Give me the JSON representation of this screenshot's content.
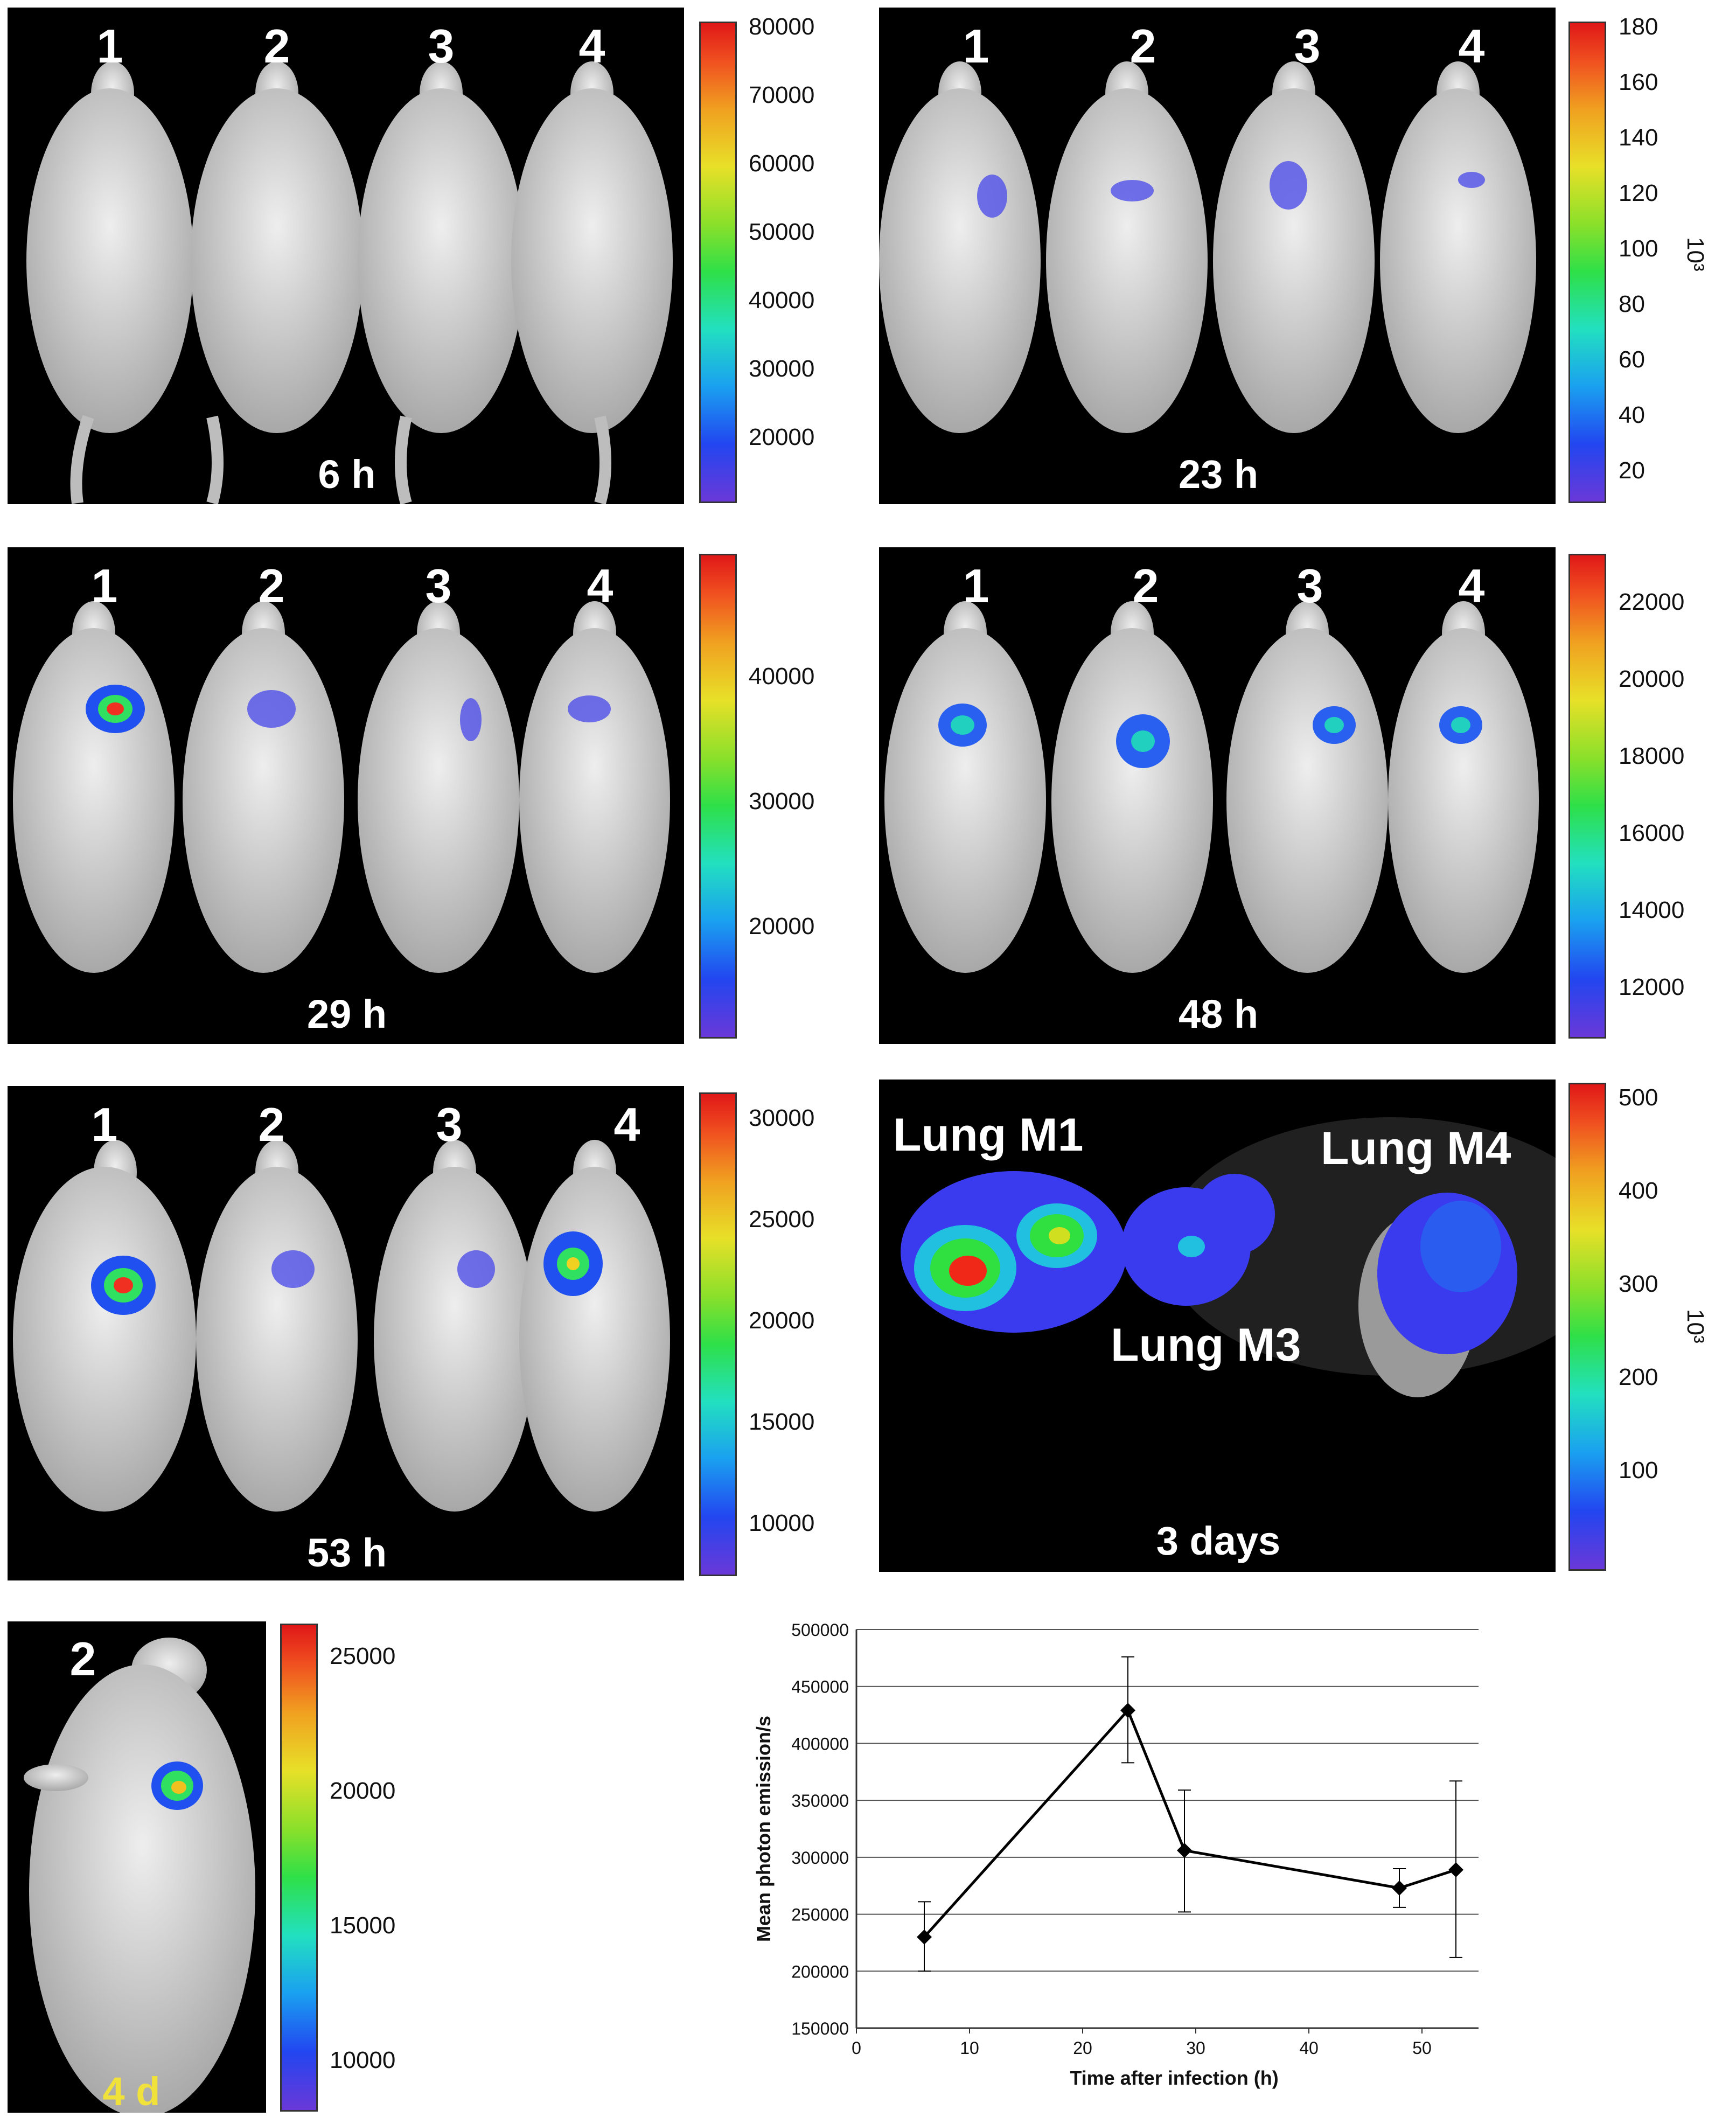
{
  "panels": [
    {
      "id": "p6h",
      "time": "6 h",
      "mice": [
        "1",
        "2",
        "3",
        "4"
      ],
      "scale": {
        "ticks": [
          "80000",
          "70000",
          "60000",
          "50000",
          "40000",
          "30000",
          "20000"
        ],
        "unit": ""
      }
    },
    {
      "id": "p23h",
      "time": "23 h",
      "mice": [
        "1",
        "2",
        "3",
        "4"
      ],
      "scale": {
        "ticks": [
          "180",
          "160",
          "140",
          "120",
          "100",
          "80",
          "60",
          "40",
          "20"
        ],
        "unit": "10³"
      }
    },
    {
      "id": "p29h",
      "time": "29 h",
      "mice": [
        "1",
        "2",
        "3",
        "4"
      ],
      "scale": {
        "ticks": [
          "40000",
          "30000",
          "20000"
        ],
        "unit": ""
      }
    },
    {
      "id": "p48h",
      "time": "48 h",
      "mice": [
        "1",
        "2",
        "3",
        "4"
      ],
      "scale": {
        "ticks": [
          "22000",
          "20000",
          "18000",
          "16000",
          "14000",
          "12000"
        ],
        "unit": ""
      }
    },
    {
      "id": "p53h",
      "time": "53 h",
      "mice": [
        "1",
        "2",
        "3",
        "4"
      ],
      "scale": {
        "ticks": [
          "30000",
          "25000",
          "20000",
          "15000",
          "10000"
        ],
        "unit": ""
      }
    },
    {
      "id": "p3d",
      "time": "3 days",
      "organs": [
        "Lung M1",
        "Lung M3",
        "Lung M4"
      ],
      "scale": {
        "ticks": [
          "500",
          "400",
          "300",
          "200",
          "100"
        ],
        "unit": "10³"
      }
    },
    {
      "id": "p4d",
      "time": "4 d",
      "mice": [
        "2"
      ],
      "scale": {
        "ticks": [
          "25000",
          "20000",
          "15000",
          "10000"
        ],
        "unit": ""
      }
    }
  ],
  "chart_data": {
    "type": "line",
    "xlabel": "Time after infection (h)",
    "ylabel": "Mean photon emission/s",
    "xlim": [
      0,
      55
    ],
    "ylim": [
      150000,
      500000
    ],
    "xticks": [
      "0",
      "10",
      "20",
      "30",
      "40",
      "50"
    ],
    "yticks": [
      "500000",
      "450000",
      "400000",
      "350000",
      "300000",
      "250000",
      "200000",
      "150000"
    ],
    "grid": "horizontal",
    "series": [
      {
        "x": [
          6,
          24,
          29,
          48,
          53
        ],
        "values": [
          230000,
          429000,
          306000,
          273000,
          289000
        ],
        "err_low": [
          200000,
          383000,
          252000,
          256000,
          212000
        ],
        "err_high": [
          261000,
          476000,
          359000,
          290000,
          367000
        ]
      }
    ],
    "marker": "diamond",
    "color": "#000000"
  }
}
